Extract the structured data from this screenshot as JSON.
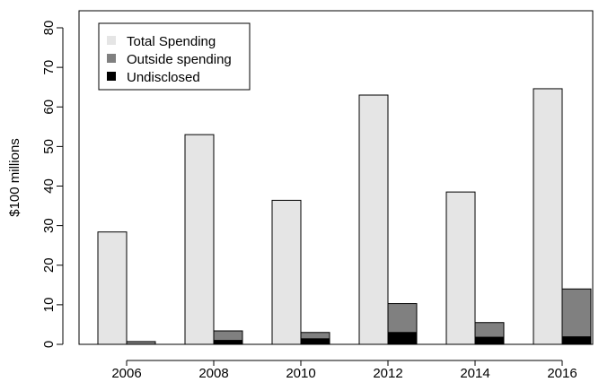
{
  "chart_data": {
    "type": "bar",
    "categories": [
      "2006",
      "2008",
      "2010",
      "2012",
      "2014",
      "2016"
    ],
    "series": [
      {
        "name": "Total Spending",
        "values": [
          28.4,
          53.0,
          36.4,
          63.0,
          38.5,
          64.6
        ],
        "color": "#e5e5e5"
      },
      {
        "name": "Outside spending",
        "values": [
          0.7,
          3.4,
          3.0,
          10.3,
          5.5,
          14.0
        ],
        "color": "#808080"
      },
      {
        "name": "Undisclosed",
        "values": [
          0.0,
          1.0,
          1.4,
          3.0,
          1.8,
          1.9
        ],
        "color": "#000000"
      }
    ],
    "overlay": {
      "series": "Undisclosed",
      "on": "Outside spending"
    },
    "title": "",
    "xlabel": "",
    "ylabel": "$100 millions",
    "ylim": [
      0,
      80
    ],
    "yticks": [
      0,
      10,
      20,
      30,
      40,
      50,
      60,
      70,
      80
    ],
    "legend": "top-left",
    "grid": false
  }
}
